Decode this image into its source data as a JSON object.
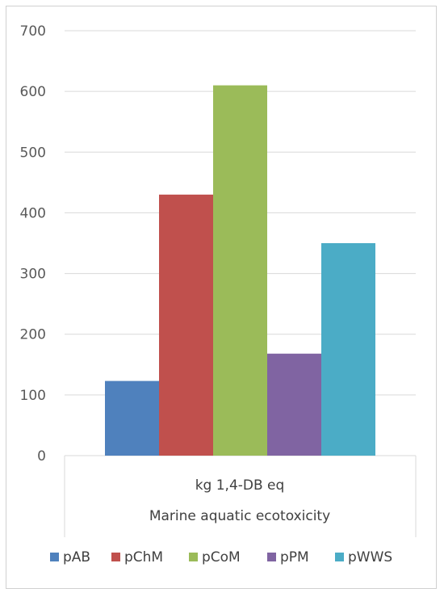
{
  "chart_data": {
    "type": "bar",
    "title": "",
    "ylim": [
      0,
      700
    ],
    "y_ticks": [
      0,
      100,
      200,
      300,
      400,
      500,
      600,
      700
    ],
    "grid": true,
    "legend_position": "bottom",
    "category_labels": [
      "kg 1,4-DB eq",
      "Marine aquatic ecotoxicity"
    ],
    "series": [
      {
        "name": "pAB",
        "value": 123,
        "color": "#4f81bd"
      },
      {
        "name": "pChM",
        "value": 430,
        "color": "#c0504d"
      },
      {
        "name": "pCoM",
        "value": 610,
        "color": "#9bbb59"
      },
      {
        "name": "pPM",
        "value": 168,
        "color": "#8064a2"
      },
      {
        "name": "pWWS",
        "value": 350,
        "color": "#4bacc6"
      }
    ]
  }
}
